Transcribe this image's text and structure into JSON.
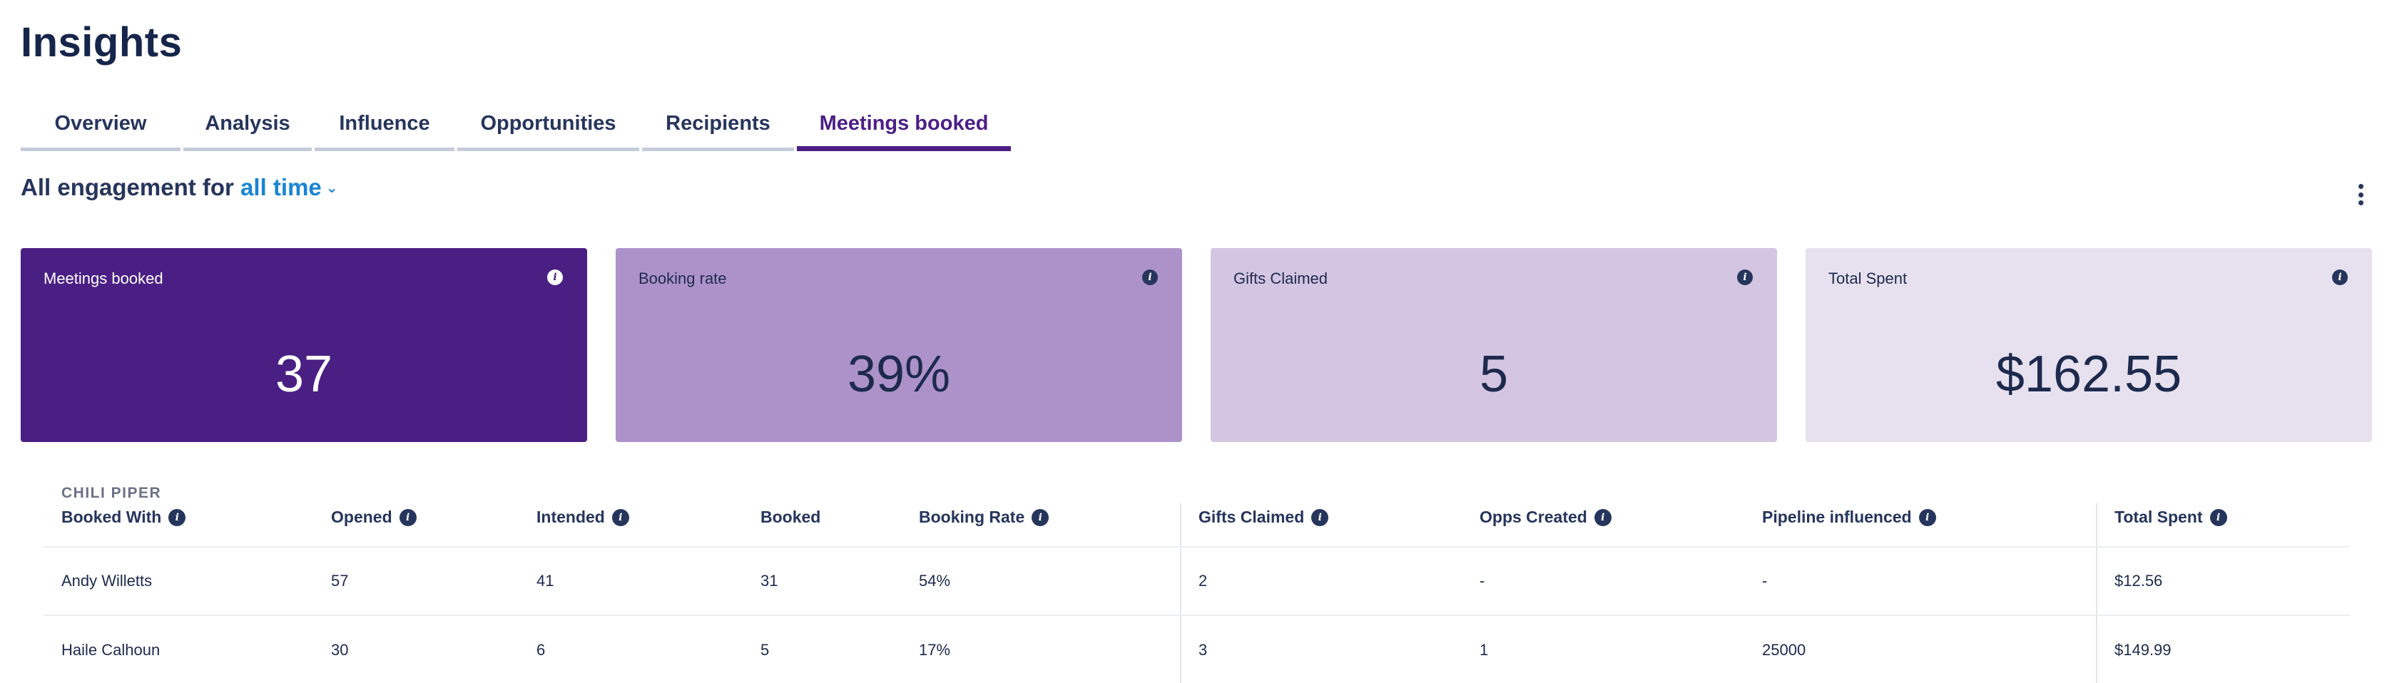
{
  "page_title": "Insights",
  "tabs": [
    {
      "label": "Overview"
    },
    {
      "label": "Analysis"
    },
    {
      "label": "Influence"
    },
    {
      "label": "Opportunities"
    },
    {
      "label": "Recipients"
    },
    {
      "label": "Meetings booked"
    }
  ],
  "active_tab": "Meetings booked",
  "filter": {
    "prefix": "All engagement for",
    "range": "all time"
  },
  "cards": [
    {
      "label": "Meetings booked",
      "value": "37"
    },
    {
      "label": "Booking rate",
      "value": "39%"
    },
    {
      "label": "Gifts Claimed",
      "value": "5"
    },
    {
      "label": "Total Spent",
      "value": "$162.55"
    }
  ],
  "table": {
    "group_label": "CHILI PIPER",
    "columns": [
      {
        "label": "Booked With",
        "info": true
      },
      {
        "label": "Opened",
        "info": true
      },
      {
        "label": "Intended",
        "info": true
      },
      {
        "label": "Booked",
        "info": false
      },
      {
        "label": "Booking Rate",
        "info": true
      },
      {
        "label": "Gifts Claimed",
        "info": true
      },
      {
        "label": "Opps Created",
        "info": true
      },
      {
        "label": "Pipeline influenced",
        "info": true
      },
      {
        "label": "Total Spent",
        "info": true
      }
    ],
    "rows": [
      [
        "Andy Willetts",
        "57",
        "41",
        "31",
        "54%",
        "2",
        "-",
        "-",
        "$12.56"
      ],
      [
        "Haile Calhoun",
        "30",
        "6",
        "5",
        "17%",
        "3",
        "1",
        "25000",
        "$149.99"
      ]
    ]
  }
}
